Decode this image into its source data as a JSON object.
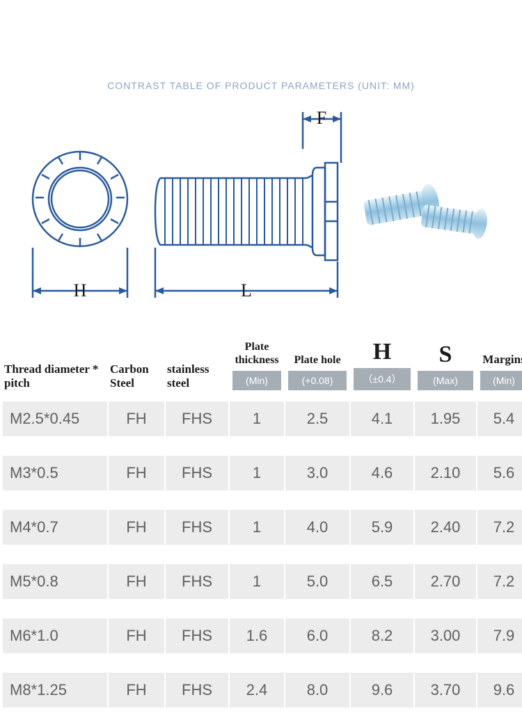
{
  "title": "CONTRAST TABLE OF PRODUCT PARAMETERS (UNIT: MM)",
  "diagram": {
    "top_view_label": "H",
    "side_view_label_L": "L",
    "side_view_label_F": "F",
    "colors": {
      "outline": "#2a5a9e",
      "dim_line": "#2a5a9e",
      "photo_tint": "#b8d8e8"
    }
  },
  "headers": {
    "col0": "Thread diameter * pitch",
    "col1": "Carbon Steel",
    "col2": "stainless steel",
    "col3_main": "Plate thickness",
    "col3_sub": "(Min)",
    "col4_main": "Plate hole",
    "col4_sub": "(+0.08)",
    "col5_main": "H",
    "col5_sub": "（±0.4）",
    "col6_main": "S",
    "col6_sub": "(Max)",
    "col7_main": "Margins",
    "col7_sub": "(Min)"
  },
  "rows": [
    {
      "c0": "M2.5*0.45",
      "c1": "FH",
      "c2": "FHS",
      "c3": "1",
      "c4": "2.5",
      "c5": "4.1",
      "c6": "1.95",
      "c7": "5.4"
    },
    {
      "c0": "M3*0.5",
      "c1": "FH",
      "c2": "FHS",
      "c3": "1",
      "c4": "3.0",
      "c5": "4.6",
      "c6": "2.10",
      "c7": "5.6"
    },
    {
      "c0": "M4*0.7",
      "c1": "FH",
      "c2": "FHS",
      "c3": "1",
      "c4": "4.0",
      "c5": "5.9",
      "c6": "2.40",
      "c7": "7.2"
    },
    {
      "c0": "M5*0.8",
      "c1": "FH",
      "c2": "FHS",
      "c3": "1",
      "c4": "5.0",
      "c5": "6.5",
      "c6": "2.70",
      "c7": "7.2"
    },
    {
      "c0": "M6*1.0",
      "c1": "FH",
      "c2": "FHS",
      "c3": "1.6",
      "c4": "6.0",
      "c5": "8.2",
      "c6": "3.00",
      "c7": "7.9"
    },
    {
      "c0": "M8*1.25",
      "c1": "FH",
      "c2": "FHS",
      "c3": "2.4",
      "c4": "8.0",
      "c5": "9.6",
      "c6": "3.70",
      "c7": "9.6"
    }
  ]
}
